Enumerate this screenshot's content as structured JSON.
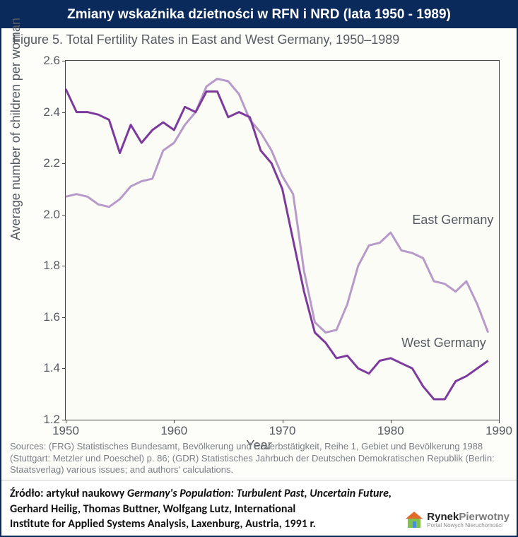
{
  "header": {
    "title": "Zmiany wskaźnika dzietności w RFN i NRD (lata 1950 - 1989)"
  },
  "figure": {
    "caption": "Figure 5. Total Fertility Rates in East and West Germany, 1950–1989",
    "ylabel": "Average number of children per woman",
    "xlabel": "Year",
    "sources": "Sources: (FRG) Statistisches Bundesamt, Bevölkerung und Erwerbstätigkeit, Reihe 1, Gebiet und Bevölkerung 1988 (Stuttgart: Metzler und Poeschel) p. 86; (GDR) Statistisches Jahrbuch der Deutschen Demokratischen Republik (Berlin: Staatsverlag) various issues; and authors' calculations."
  },
  "chart": {
    "type": "line",
    "background_color": "#fcfcf7",
    "border_color": "#444444",
    "xlim": [
      1950,
      1990
    ],
    "ylim": [
      1.2,
      2.6
    ],
    "xticks": [
      1950,
      1960,
      1970,
      1980,
      1990
    ],
    "yticks": [
      1.2,
      1.4,
      1.6,
      1.8,
      2.0,
      2.2,
      2.4,
      2.6
    ],
    "tick_fontsize": 17,
    "axis_label_fontsize": 18,
    "tick_color": "#555a60",
    "series": [
      {
        "name": "East Germany",
        "label": "East Germany",
        "label_pos": {
          "x": 1982,
          "y": 1.98
        },
        "color": "#b79ac9",
        "line_width": 3,
        "data": [
          [
            1950,
            2.07
          ],
          [
            1951,
            2.08
          ],
          [
            1952,
            2.07
          ],
          [
            1953,
            2.04
          ],
          [
            1954,
            2.03
          ],
          [
            1955,
            2.06
          ],
          [
            1956,
            2.11
          ],
          [
            1957,
            2.13
          ],
          [
            1958,
            2.14
          ],
          [
            1959,
            2.25
          ],
          [
            1960,
            2.28
          ],
          [
            1961,
            2.35
          ],
          [
            1962,
            2.4
          ],
          [
            1963,
            2.5
          ],
          [
            1964,
            2.53
          ],
          [
            1965,
            2.52
          ],
          [
            1966,
            2.47
          ],
          [
            1967,
            2.37
          ],
          [
            1968,
            2.32
          ],
          [
            1969,
            2.25
          ],
          [
            1970,
            2.15
          ],
          [
            1971,
            2.08
          ],
          [
            1972,
            1.78
          ],
          [
            1973,
            1.58
          ],
          [
            1974,
            1.54
          ],
          [
            1975,
            1.55
          ],
          [
            1976,
            1.65
          ],
          [
            1977,
            1.8
          ],
          [
            1978,
            1.88
          ],
          [
            1979,
            1.89
          ],
          [
            1980,
            1.93
          ],
          [
            1981,
            1.86
          ],
          [
            1982,
            1.85
          ],
          [
            1983,
            1.83
          ],
          [
            1984,
            1.74
          ],
          [
            1985,
            1.73
          ],
          [
            1986,
            1.7
          ],
          [
            1987,
            1.74
          ],
          [
            1988,
            1.65
          ],
          [
            1989,
            1.54
          ]
        ]
      },
      {
        "name": "West Germany",
        "label": "West Germany",
        "label_pos": {
          "x": 1981,
          "y": 1.5
        },
        "color": "#7c3a9d",
        "line_width": 3,
        "data": [
          [
            1950,
            2.49
          ],
          [
            1951,
            2.4
          ],
          [
            1952,
            2.4
          ],
          [
            1953,
            2.39
          ],
          [
            1954,
            2.37
          ],
          [
            1955,
            2.24
          ],
          [
            1956,
            2.35
          ],
          [
            1957,
            2.28
          ],
          [
            1958,
            2.33
          ],
          [
            1959,
            2.36
          ],
          [
            1960,
            2.33
          ],
          [
            1961,
            2.42
          ],
          [
            1962,
            2.4
          ],
          [
            1963,
            2.48
          ],
          [
            1964,
            2.48
          ],
          [
            1965,
            2.38
          ],
          [
            1966,
            2.4
          ],
          [
            1967,
            2.38
          ],
          [
            1968,
            2.25
          ],
          [
            1969,
            2.2
          ],
          [
            1970,
            2.1
          ],
          [
            1971,
            1.9
          ],
          [
            1972,
            1.7
          ],
          [
            1973,
            1.54
          ],
          [
            1974,
            1.5
          ],
          [
            1975,
            1.44
          ],
          [
            1976,
            1.45
          ],
          [
            1977,
            1.4
          ],
          [
            1978,
            1.38
          ],
          [
            1979,
            1.43
          ],
          [
            1980,
            1.44
          ],
          [
            1981,
            1.42
          ],
          [
            1982,
            1.4
          ],
          [
            1983,
            1.33
          ],
          [
            1984,
            1.28
          ],
          [
            1985,
            1.28
          ],
          [
            1986,
            1.35
          ],
          [
            1987,
            1.37
          ],
          [
            1988,
            1.4
          ],
          [
            1989,
            1.43
          ]
        ]
      }
    ]
  },
  "footer": {
    "line1_prefix": "Źródło: artykuł naukowy ",
    "line1_italic": "Germany's Population: Turbulent Past, Uncertain Future,",
    "line2": "Gerhard Heilig, Thomas Buttner, Wolfgang Lutz, International",
    "line3": "Institute for Applied Systems Analysis, Laxenburg, Austria, 1991 r."
  },
  "logo": {
    "brand1": "Rynek",
    "brand2": "Pierwotny",
    "sub": "Portal Nowych Nieruchomości",
    "house_colors": {
      "roof": "#e06a2b",
      "wall": "#7fc24b",
      "door": "#4a8ed6"
    }
  }
}
